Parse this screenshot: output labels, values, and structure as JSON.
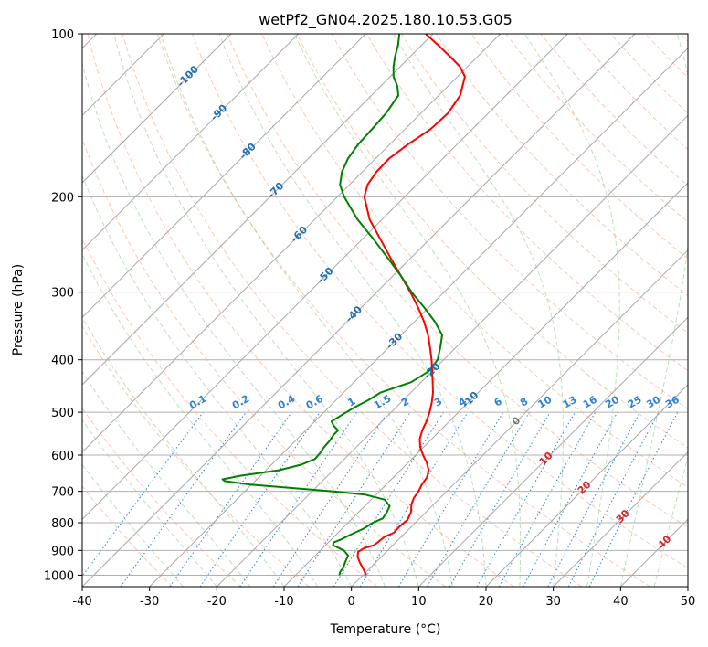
{
  "chart_data": {
    "type": "line",
    "title": "wetPf2_GN04.2025.180.10.53.G05",
    "xlabel": "Temperature (°C)",
    "ylabel": "Pressure (hPa)",
    "xlim": [
      -40,
      50
    ],
    "ylim": [
      1050,
      100
    ],
    "y_scale": "log",
    "skew": "skew-T log-p",
    "grid": true,
    "x_ticks": [
      -40,
      -30,
      -20,
      -10,
      0,
      10,
      20,
      30,
      40,
      50
    ],
    "y_ticks": [
      100,
      200,
      300,
      400,
      500,
      600,
      700,
      800,
      900,
      1000
    ],
    "series": [
      {
        "color": "#ff0000",
        "kind": "temperature",
        "points": [
          {
            "p": 1000,
            "t": 0.5
          },
          {
            "p": 975,
            "t": -0.8
          },
          {
            "p": 950,
            "t": -2.2
          },
          {
            "p": 925,
            "t": -3.5
          },
          {
            "p": 905,
            "t": -4.2
          },
          {
            "p": 890,
            "t": -3.8
          },
          {
            "p": 880,
            "t": -2.8
          },
          {
            "p": 850,
            "t": -2.5
          },
          {
            "p": 835,
            "t": -1.7
          },
          {
            "p": 815,
            "t": -1.8
          },
          {
            "p": 790,
            "t": -1.6
          },
          {
            "p": 765,
            "t": -2.2
          },
          {
            "p": 740,
            "t": -3.3
          },
          {
            "p": 720,
            "t": -3.9
          },
          {
            "p": 700,
            "t": -4.2
          },
          {
            "p": 680,
            "t": -4.7
          },
          {
            "p": 660,
            "t": -5.0
          },
          {
            "p": 640,
            "t": -5.8
          },
          {
            "p": 620,
            "t": -7.2
          },
          {
            "p": 600,
            "t": -8.9
          },
          {
            "p": 580,
            "t": -10.5
          },
          {
            "p": 560,
            "t": -11.8
          },
          {
            "p": 540,
            "t": -12.7
          },
          {
            "p": 520,
            "t": -13.4
          },
          {
            "p": 500,
            "t": -14.3
          },
          {
            "p": 480,
            "t": -15.4
          },
          {
            "p": 460,
            "t": -16.7
          },
          {
            "p": 440,
            "t": -18.3
          },
          {
            "p": 420,
            "t": -20.0
          },
          {
            "p": 400,
            "t": -21.8
          },
          {
            "p": 380,
            "t": -23.8
          },
          {
            "p": 360,
            "t": -26.0
          },
          {
            "p": 340,
            "t": -28.6
          },
          {
            "p": 320,
            "t": -31.6
          },
          {
            "p": 300,
            "t": -35.0
          },
          {
            "p": 280,
            "t": -38.8
          },
          {
            "p": 260,
            "t": -42.9
          },
          {
            "p": 240,
            "t": -47.2
          },
          {
            "p": 220,
            "t": -51.9
          },
          {
            "p": 200,
            "t": -56.0
          },
          {
            "p": 190,
            "t": -57.3
          },
          {
            "p": 180,
            "t": -57.9
          },
          {
            "p": 170,
            "t": -58.0
          },
          {
            "p": 160,
            "t": -57.3
          },
          {
            "p": 150,
            "t": -56.2
          },
          {
            "p": 140,
            "t": -56.0
          },
          {
            "p": 130,
            "t": -56.8
          },
          {
            "p": 120,
            "t": -58.9
          },
          {
            "p": 115,
            "t": -61.1
          },
          {
            "p": 110,
            "t": -64.2
          },
          {
            "p": 105,
            "t": -67.5
          },
          {
            "p": 100,
            "t": -71.1
          }
        ]
      },
      {
        "color": "#008000",
        "kind": "dewpoint",
        "points": [
          {
            "p": 1000,
            "t": -3.5
          },
          {
            "p": 985,
            "t": -3.9
          },
          {
            "p": 970,
            "t": -4.0
          },
          {
            "p": 940,
            "t": -4.7
          },
          {
            "p": 920,
            "t": -5.1
          },
          {
            "p": 900,
            "t": -6.5
          },
          {
            "p": 880,
            "t": -8.9
          },
          {
            "p": 870,
            "t": -9.2
          },
          {
            "p": 860,
            "t": -8.6
          },
          {
            "p": 840,
            "t": -7.8
          },
          {
            "p": 820,
            "t": -6.8
          },
          {
            "p": 800,
            "t": -6.3
          },
          {
            "p": 785,
            "t": -5.5
          },
          {
            "p": 765,
            "t": -5.8
          },
          {
            "p": 745,
            "t": -6.3
          },
          {
            "p": 725,
            "t": -8.0
          },
          {
            "p": 710,
            "t": -11.6
          },
          {
            "p": 700,
            "t": -16.8
          },
          {
            "p": 690,
            "t": -23.5
          },
          {
            "p": 680,
            "t": -30.2
          },
          {
            "p": 670,
            "t": -34.5
          },
          {
            "p": 665,
            "t": -35.1
          },
          {
            "p": 655,
            "t": -33.0
          },
          {
            "p": 640,
            "t": -28.1
          },
          {
            "p": 625,
            "t": -25.6
          },
          {
            "p": 610,
            "t": -24.4
          },
          {
            "p": 595,
            "t": -24.5
          },
          {
            "p": 580,
            "t": -24.8
          },
          {
            "p": 565,
            "t": -24.9
          },
          {
            "p": 550,
            "t": -25.2
          },
          {
            "p": 540,
            "t": -25.2
          },
          {
            "p": 530,
            "t": -26.5
          },
          {
            "p": 520,
            "t": -27.5
          },
          {
            "p": 505,
            "t": -26.9
          },
          {
            "p": 490,
            "t": -26.2
          },
          {
            "p": 475,
            "t": -25.2
          },
          {
            "p": 460,
            "t": -24.5
          },
          {
            "p": 440,
            "t": -21.5
          },
          {
            "p": 420,
            "t": -20.5
          },
          {
            "p": 400,
            "t": -20.9
          },
          {
            "p": 380,
            "t": -22.3
          },
          {
            "p": 360,
            "t": -23.9
          },
          {
            "p": 340,
            "t": -27.0
          },
          {
            "p": 320,
            "t": -30.7
          },
          {
            "p": 300,
            "t": -34.8
          },
          {
            "p": 280,
            "t": -38.8
          },
          {
            "p": 260,
            "t": -43.3
          },
          {
            "p": 240,
            "t": -48.2
          },
          {
            "p": 220,
            "t": -53.7
          },
          {
            "p": 200,
            "t": -59.0
          },
          {
            "p": 190,
            "t": -61.4
          },
          {
            "p": 180,
            "t": -63.0
          },
          {
            "p": 170,
            "t": -64.1
          },
          {
            "p": 160,
            "t": -64.7
          },
          {
            "p": 150,
            "t": -64.9
          },
          {
            "p": 140,
            "t": -65.2
          },
          {
            "p": 130,
            "t": -66.0
          },
          {
            "p": 125,
            "t": -67.5
          },
          {
            "p": 120,
            "t": -69.5
          },
          {
            "p": 115,
            "t": -71.0
          },
          {
            "p": 110,
            "t": -72.3
          },
          {
            "p": 105,
            "t": -73.5
          },
          {
            "p": 100,
            "t": -75.0
          }
        ]
      }
    ],
    "isotherm_labels": [
      {
        "text": "-100",
        "t": -100,
        "p": 120
      },
      {
        "text": "-90",
        "t": -90,
        "p": 140
      },
      {
        "text": "-80",
        "t": -80,
        "p": 165
      },
      {
        "text": "-70",
        "t": -70,
        "p": 195
      },
      {
        "text": "-60",
        "t": -60,
        "p": 235
      },
      {
        "text": "-50",
        "t": -50,
        "p": 280
      },
      {
        "text": "-40",
        "t": -40,
        "p": 330
      },
      {
        "text": "-30",
        "t": -30,
        "p": 370
      },
      {
        "text": "-20",
        "t": -20,
        "p": 420
      },
      {
        "text": "-10",
        "t": -10,
        "p": 475
      }
    ],
    "mixing_ratio_labels": [
      "0.1",
      "0.2",
      "0.4",
      "0.6",
      "1",
      "1.5",
      "2",
      "3",
      "4",
      "6",
      "8",
      "10",
      "13",
      "16",
      "20",
      "25",
      "30",
      "36"
    ],
    "moist_adiabat_labels": [
      "0",
      "10",
      "20",
      "30",
      "40"
    ]
  }
}
